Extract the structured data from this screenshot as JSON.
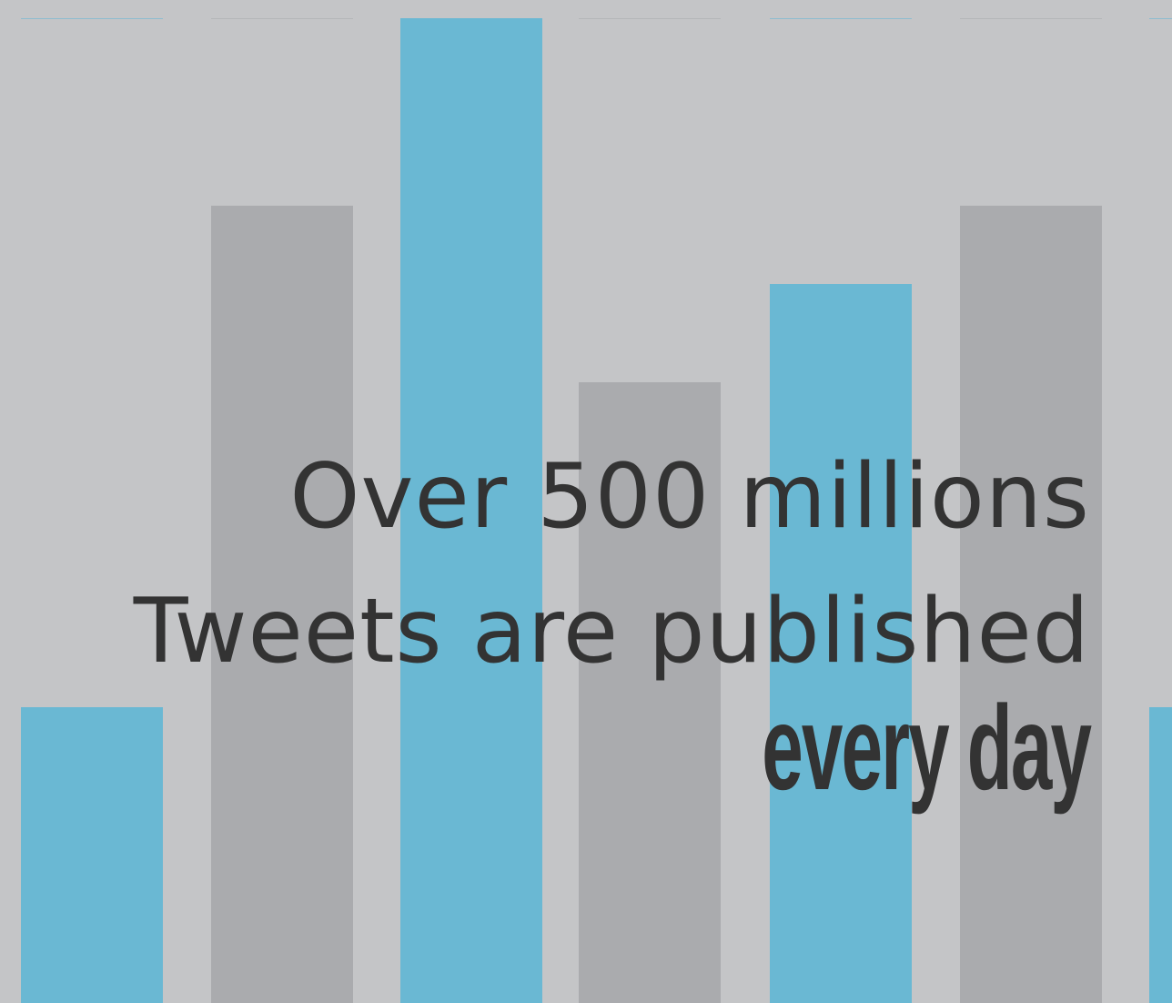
{
  "headline": {
    "line1": "Over 500 millions",
    "line2": "Tweets are published",
    "line3": "every day"
  },
  "colors": {
    "background": "#c4c5c7",
    "accent_blue": "#6ab8d3",
    "bar_gray": "#aaabae",
    "text": "#333333"
  },
  "bars": [
    {
      "level": 0.3,
      "color": "accent_blue"
    },
    {
      "level": 0.81,
      "color": "bar_gray"
    },
    {
      "level": 1.0,
      "color": "accent_blue"
    },
    {
      "level": 0.63,
      "color": "bar_gray"
    },
    {
      "level": 0.73,
      "color": "accent_blue"
    },
    {
      "level": 0.81,
      "color": "bar_gray"
    },
    {
      "level": 0.3,
      "color": "accent_blue"
    }
  ]
}
